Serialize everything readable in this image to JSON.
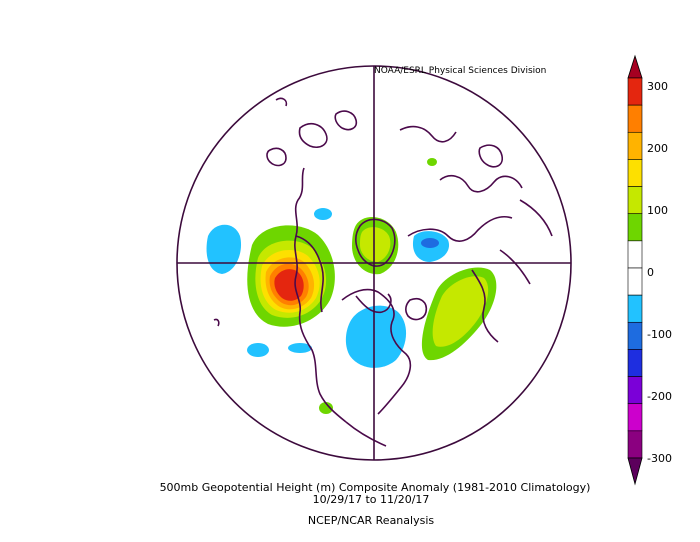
{
  "credit": "NOAA/ESRL Physical Sciences Division",
  "title": "500mb Geopotential Height (m) Composite Anomaly (1981-2010 Climatology)",
  "date_range": "10/29/17  to 11/20/17",
  "source": "NCEP/NCAR Reanalysis",
  "colorbar": {
    "ticks": [
      "300",
      "200",
      "100",
      "0",
      "-100",
      "-200",
      "-300"
    ],
    "colors": [
      "#a50021",
      "#e4260f",
      "#ff7f00",
      "#ffb300",
      "#fde000",
      "#c5e800",
      "#6ed600",
      "#ffffff",
      "#ffffff",
      "#22c2ff",
      "#1e6ce0",
      "#1e2ee0",
      "#7b00d8",
      "#cc00cc",
      "#8b0080",
      "#5c005c"
    ]
  },
  "colors": {
    "coastline": "#4b0a4b",
    "frame": "#3c0a3c"
  }
}
